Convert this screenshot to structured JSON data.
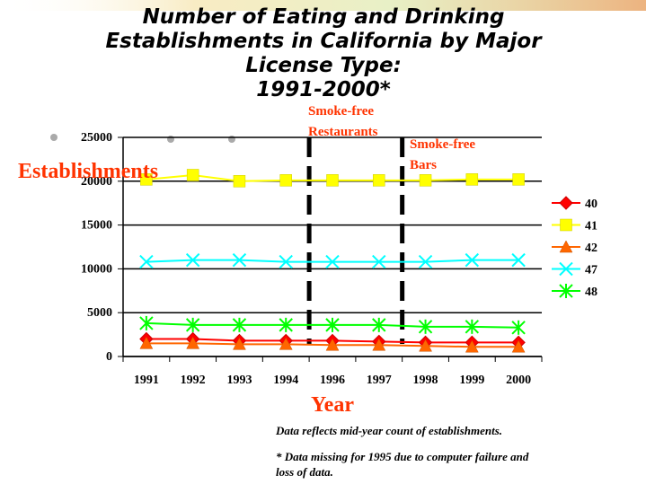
{
  "chart_data": {
    "type": "line",
    "title_lines": [
      "Number of Eating and Drinking",
      "Establishments in California by Major",
      "License Type:",
      "1991-2000*"
    ],
    "ylabel": "Establishments",
    "xlabel": "Year",
    "categories": [
      "1991",
      "1992",
      "1993",
      "1994",
      "1996",
      "1997",
      "1998",
      "1999",
      "2000"
    ],
    "ylim": [
      0,
      25000
    ],
    "yticks": [
      0,
      5000,
      10000,
      15000,
      20000,
      25000
    ],
    "grid": "horizontal",
    "legend_position": "right",
    "series": [
      {
        "name": "40",
        "color": "#ff0000",
        "marker": "diamond",
        "values": [
          2000,
          2000,
          1800,
          1800,
          1800,
          1700,
          1600,
          1600,
          1600
        ]
      },
      {
        "name": "41",
        "color": "#ffff00",
        "marker": "square",
        "values": [
          20200,
          20700,
          20000,
          20100,
          20100,
          20100,
          20100,
          20200,
          20200
        ]
      },
      {
        "name": "42",
        "color": "#ff6600",
        "marker": "triangle",
        "values": [
          1500,
          1500,
          1400,
          1400,
          1300,
          1300,
          1200,
          1100,
          1100
        ]
      },
      {
        "name": "47",
        "color": "#00ffff",
        "marker": "x",
        "values": [
          10800,
          11000,
          11000,
          10800,
          10800,
          10800,
          10800,
          11000,
          11000
        ]
      },
      {
        "name": "48",
        "color": "#00ff00",
        "marker": "star",
        "values": [
          3800,
          3600,
          3600,
          3600,
          3600,
          3600,
          3400,
          3400,
          3300
        ]
      }
    ],
    "annotations": [
      {
        "text_lines": [
          "Smoke-free",
          "Restaurants"
        ],
        "between": [
          "1994",
          "1996"
        ]
      },
      {
        "text_lines": [
          "Smoke-free",
          "Bars"
        ],
        "between": [
          "1997",
          "1998"
        ]
      }
    ]
  },
  "footnotes": [
    "Data reflects mid-year count of establishments.",
    "* Data missing for 1995 due to computer failure and",
    "loss of data."
  ]
}
